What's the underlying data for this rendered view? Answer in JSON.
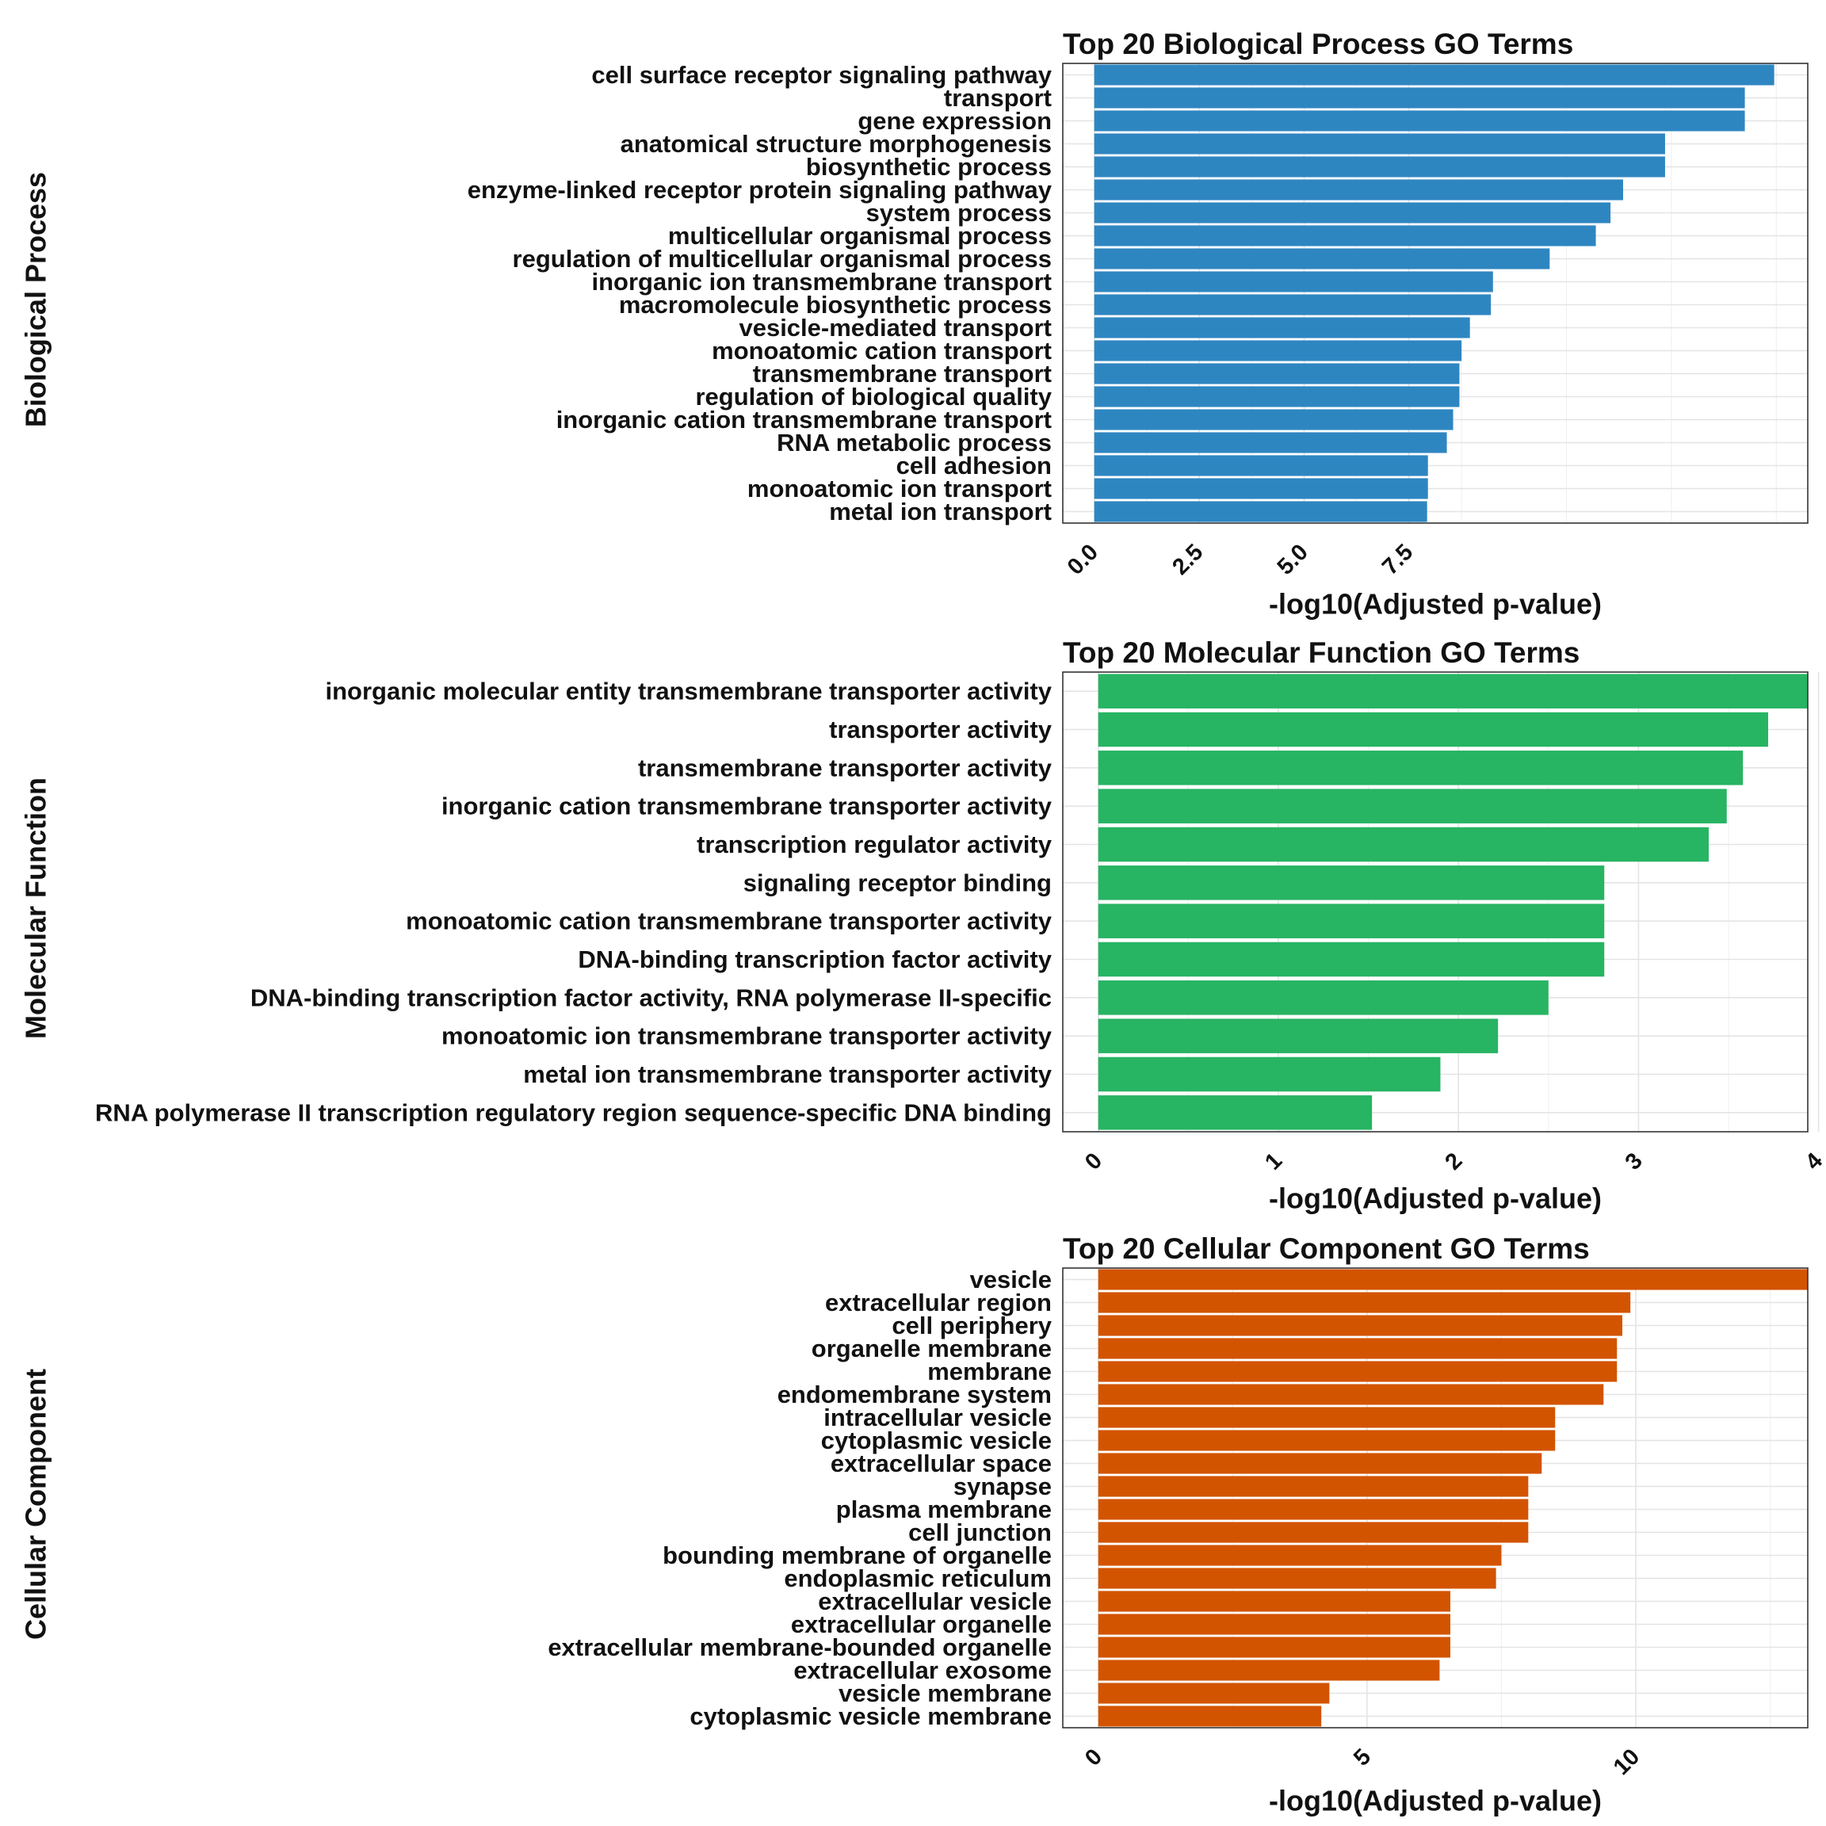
{
  "chart_data": [
    {
      "type": "bar",
      "orientation": "horizontal",
      "title": "Top 20 Biological Process GO Terms",
      "row_label": "Biological Process",
      "xlabel": "-log10(Adjusted p-value)",
      "ticks": [
        0,
        2.5,
        5,
        7.5
      ],
      "tick_labels": [
        "0.0",
        "2.5",
        "5.0",
        "7.5"
      ],
      "xlim": [
        -0.75,
        17.0
      ],
      "color": "#2E86C1",
      "categories": [
        "cell surface receptor signaling pathway",
        "transport",
        "gene expression",
        "anatomical structure morphogenesis",
        "biosynthetic process",
        "enzyme-linked receptor protein signaling pathway",
        "system process",
        "multicellular organismal process",
        "regulation of multicellular organismal process",
        "inorganic ion transmembrane transport",
        "macromolecule biosynthetic process",
        "vesicle-mediated transport",
        "monoatomic cation transport",
        "transmembrane transport",
        "regulation of biological quality",
        "inorganic cation transmembrane transport",
        "RNA metabolic process",
        "cell adhesion",
        "monoatomic ion transport",
        "metal ion transport"
      ],
      "values": [
        16.2,
        15.5,
        15.5,
        13.6,
        13.6,
        12.6,
        12.3,
        11.95,
        10.85,
        9.5,
        9.45,
        8.95,
        8.75,
        8.7,
        8.7,
        8.55,
        8.4,
        7.95,
        7.95,
        7.93
      ]
    },
    {
      "type": "bar",
      "orientation": "horizontal",
      "title": "Top 20 Molecular Function GO Terms",
      "row_label": "Molecular Function",
      "xlabel": "-log10(Adjusted p-value)",
      "ticks": [
        0,
        1,
        2,
        3,
        4
      ],
      "tick_labels": [
        "0",
        "1",
        "2",
        "3",
        "4"
      ],
      "xlim": [
        -0.197,
        3.94
      ],
      "color": "#27B463",
      "categories": [
        "inorganic molecular entity transmembrane transporter activity",
        "transporter activity",
        "transmembrane transporter activity",
        "inorganic cation transmembrane transporter activity",
        "transcription regulator activity",
        "signaling receptor binding",
        "monoatomic cation transmembrane transporter activity",
        "DNA-binding transcription factor activity",
        "DNA-binding transcription factor activity, RNA polymerase II-specific",
        "monoatomic ion transmembrane transporter activity",
        "metal ion transmembrane transporter activity",
        "RNA polymerase II transcription regulatory region sequence-specific DNA binding"
      ],
      "values": [
        3.94,
        3.72,
        3.58,
        3.49,
        3.39,
        2.81,
        2.81,
        2.81,
        2.5,
        2.22,
        1.9,
        1.52
      ]
    },
    {
      "type": "bar",
      "orientation": "horizontal",
      "title": "Top 20 Cellular Component GO Terms",
      "row_label": "Cellular Component",
      "xlabel": "-log10(Adjusted p-value)",
      "ticks": [
        0,
        5,
        10
      ],
      "tick_labels": [
        "0",
        "5",
        "10"
      ],
      "xlim": [
        -0.66,
        13.2
      ],
      "color": "#D35400",
      "categories": [
        "vesicle",
        "extracellular region",
        "cell periphery",
        "organelle membrane",
        "membrane",
        "endomembrane system",
        "intracellular vesicle",
        "cytoplasmic vesicle",
        "extracellular space",
        "synapse",
        "plasma membrane",
        "cell junction",
        "bounding membrane of organelle",
        "endoplasmic reticulum",
        "extracellular vesicle",
        "extracellular organelle",
        "extracellular membrane-bounded organelle",
        "extracellular exosome",
        "vesicle membrane",
        "cytoplasmic vesicle membrane"
      ],
      "values": [
        13.2,
        9.9,
        9.75,
        9.65,
        9.65,
        9.4,
        8.5,
        8.5,
        8.25,
        8.0,
        8.0,
        8.0,
        7.5,
        7.4,
        6.55,
        6.55,
        6.55,
        6.35,
        4.3,
        4.15
      ]
    }
  ]
}
